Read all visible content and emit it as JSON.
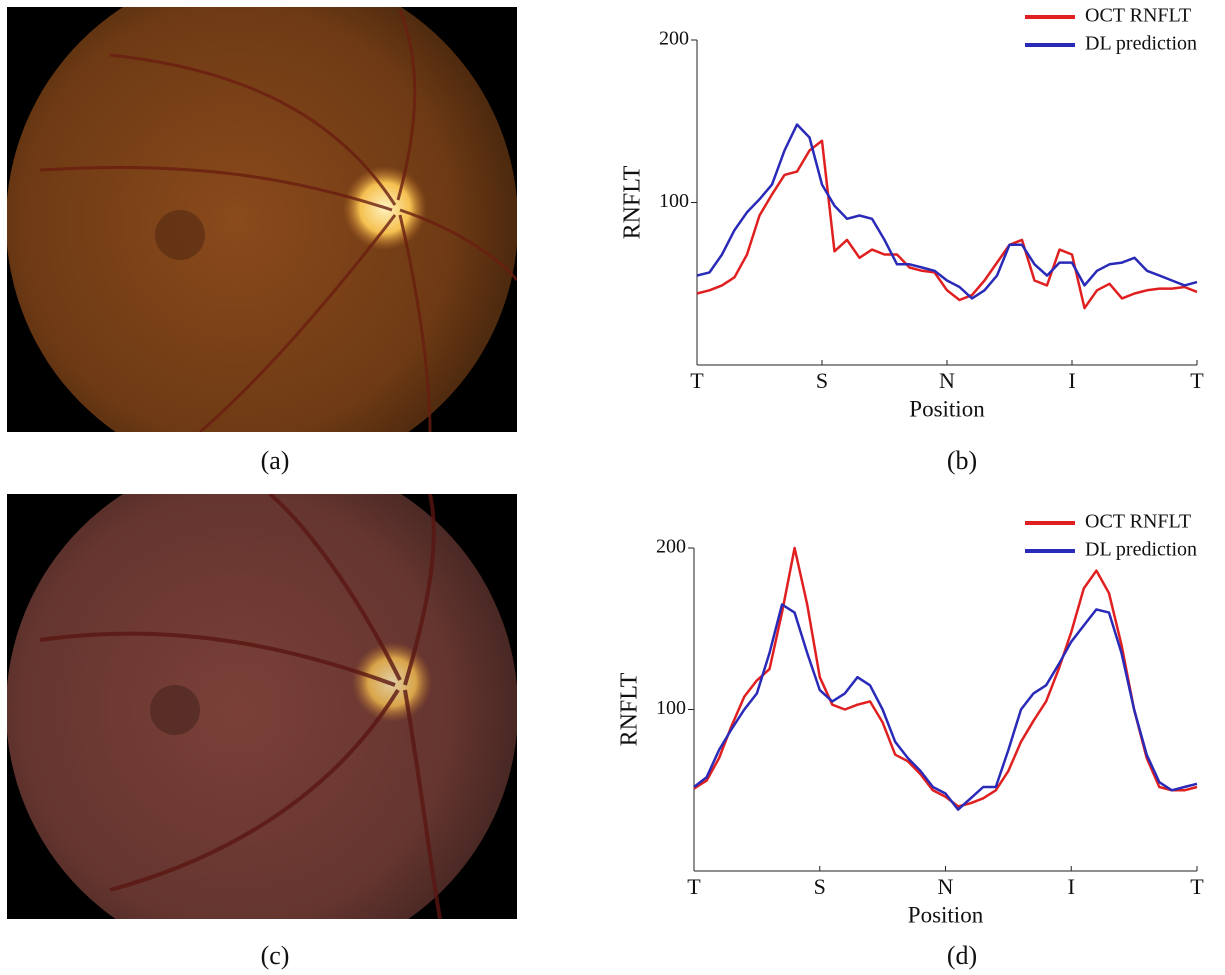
{
  "panel_labels": [
    "(a)",
    "(b)",
    "(c)",
    "(d)"
  ],
  "chart_data": [
    {
      "type": "line",
      "x_label": "Position",
      "y_label": "RNFLT",
      "x": [
        0,
        0.1,
        0.2,
        0.3,
        0.4,
        0.5,
        0.6,
        0.7,
        0.8,
        0.9,
        1,
        1.1,
        1.2,
        1.3,
        1.4,
        1.5,
        1.6,
        1.7,
        1.8,
        1.9,
        2,
        2.1,
        2.2,
        2.3,
        2.4,
        2.5,
        2.6,
        2.7,
        2.8,
        2.9,
        3,
        3.1,
        3.2,
        3.3,
        3.4,
        3.5,
        3.6,
        3.7,
        3.8,
        3.9,
        4
      ],
      "xlim": [
        0,
        4
      ],
      "xticks": [
        {
          "value": 0,
          "label": "T"
        },
        {
          "value": 1,
          "label": "S"
        },
        {
          "value": 2,
          "label": "N"
        },
        {
          "value": 3,
          "label": "I"
        },
        {
          "value": 4,
          "label": "T"
        }
      ],
      "ylim": [
        0,
        200
      ],
      "yticks": [
        100,
        200
      ],
      "legend": "upper right",
      "series": [
        {
          "name": "OCT RNFLT",
          "color": "#e02020",
          "values": [
            44,
            46,
            49,
            54,
            68,
            92,
            105,
            117,
            119,
            132,
            138,
            70,
            77,
            66,
            71,
            68,
            68,
            60,
            58,
            57,
            46,
            40,
            43,
            52,
            63,
            74,
            77,
            52,
            49,
            71,
            68,
            35,
            46,
            50,
            41,
            44,
            46,
            47,
            47,
            48,
            45
          ]
        },
        {
          "name": "DL prediction",
          "color": "#2a2ab8",
          "values": [
            55,
            57,
            68,
            83,
            94,
            102,
            111,
            132,
            148,
            140,
            111,
            98,
            90,
            92,
            90,
            77,
            62,
            62,
            60,
            58,
            52,
            48,
            41,
            46,
            55,
            74,
            74,
            62,
            55,
            63,
            63,
            49,
            58,
            62,
            63,
            66,
            58,
            55,
            52,
            49,
            51
          ]
        }
      ]
    },
    {
      "type": "line",
      "x_label": "Position",
      "y_label": "RNFLT",
      "x": [
        0,
        0.1,
        0.2,
        0.3,
        0.4,
        0.5,
        0.6,
        0.7,
        0.8,
        0.9,
        1,
        1.1,
        1.2,
        1.3,
        1.4,
        1.5,
        1.6,
        1.7,
        1.8,
        1.9,
        2,
        2.1,
        2.2,
        2.3,
        2.4,
        2.5,
        2.6,
        2.7,
        2.8,
        2.9,
        3,
        3.1,
        3.2,
        3.3,
        3.4,
        3.5,
        3.6,
        3.7,
        3.8,
        3.9,
        4
      ],
      "xlim": [
        0,
        4
      ],
      "xticks": [
        {
          "value": 0,
          "label": "T"
        },
        {
          "value": 1,
          "label": "S"
        },
        {
          "value": 2,
          "label": "N"
        },
        {
          "value": 3,
          "label": "I"
        },
        {
          "value": 4,
          "label": "T"
        }
      ],
      "ylim": [
        0,
        200
      ],
      "yticks": [
        100,
        200
      ],
      "legend": "upper right",
      "series": [
        {
          "name": "OCT RNFLT",
          "color": "#e02020",
          "values": [
            51,
            56,
            70,
            90,
            108,
            118,
            125,
            160,
            200,
            165,
            120,
            103,
            100,
            103,
            105,
            92,
            72,
            68,
            60,
            50,
            46,
            40,
            42,
            45,
            50,
            62,
            80,
            93,
            105,
            125,
            148,
            175,
            186,
            172,
            140,
            100,
            70,
            52,
            50,
            50,
            52
          ]
        },
        {
          "name": "DL prediction",
          "color": "#2a2ab8",
          "values": [
            52,
            58,
            75,
            88,
            100,
            110,
            135,
            165,
            160,
            135,
            112,
            105,
            110,
            120,
            115,
            100,
            80,
            70,
            62,
            52,
            48,
            38,
            45,
            52,
            52,
            75,
            100,
            110,
            115,
            128,
            142,
            152,
            162,
            160,
            135,
            100,
            72,
            55,
            50,
            52,
            54
          ]
        }
      ]
    }
  ]
}
